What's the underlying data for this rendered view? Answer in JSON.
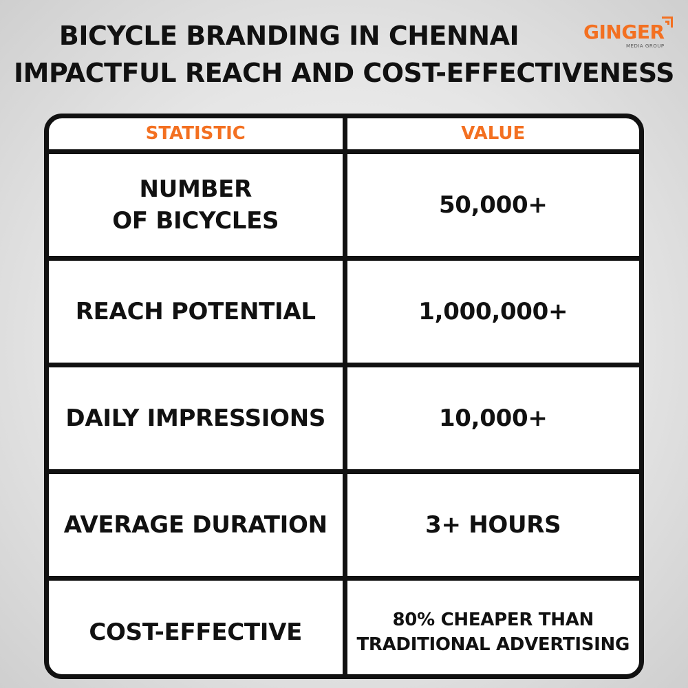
{
  "header": {
    "title_line_1": "BICYCLE BRANDING IN CHENNAI",
    "title_line_2": "IMPACTFUL REACH AND COST-EFFECTIVENESS"
  },
  "logo": {
    "name": "GINGER",
    "tagline": "MEDIA GROUP",
    "color": "#f37021"
  },
  "table": {
    "headers": [
      "STATISTIC",
      "VALUE"
    ],
    "header_color": "#f37021",
    "rows": [
      {
        "statistic_lines": [
          "NUMBER",
          "OF BICYCLES"
        ],
        "value_lines": [
          "50,000+"
        ]
      },
      {
        "statistic_lines": [
          "REACH POTENTIAL"
        ],
        "value_lines": [
          "1,000,000+"
        ]
      },
      {
        "statistic_lines": [
          "DAILY IMPRESSIONS"
        ],
        "value_lines": [
          "10,000+"
        ]
      },
      {
        "statistic_lines": [
          "AVERAGE DURATION"
        ],
        "value_lines": [
          "3+ HOURS"
        ]
      },
      {
        "statistic_lines": [
          "COST-EFFECTIVE"
        ],
        "value_lines": [
          "80% CHEAPER THAN",
          "TRADITIONAL ADVERTISING"
        ]
      }
    ]
  }
}
